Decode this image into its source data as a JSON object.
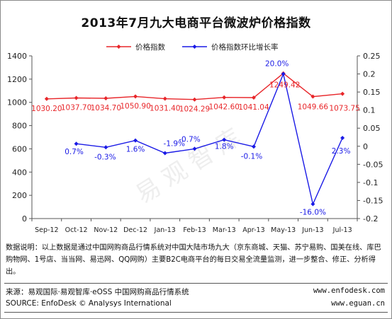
{
  "chart_data": {
    "type": "line",
    "title": "2013年7月九大电商平台微波炉价格指数",
    "categories": [
      "Sep-12",
      "Oct-12",
      "Nov-12",
      "Dec-12",
      "Jan-13",
      "Feb-13",
      "Mar-13",
      "Apr-13",
      "May-13",
      "Jun-13",
      "Jul-13"
    ],
    "left_axis": {
      "ylim": [
        0,
        1400
      ],
      "ticks": [
        "0",
        "200",
        "400",
        "600",
        "800",
        "1000",
        "1200",
        "1400"
      ]
    },
    "right_axis": {
      "ylim": [
        -0.2,
        0.25
      ],
      "ticks": [
        "-0.2",
        "-0.15",
        "-0.1",
        "-0.05",
        "0",
        "0.05",
        "0.1",
        "0.15",
        "0.2",
        "0.25"
      ]
    },
    "legend_position": "top",
    "grid": false,
    "series": [
      {
        "name": "价格指数",
        "axis": "left",
        "color": "#e8262a",
        "values": [
          1030.2,
          1037.7,
          1034.7,
          1050.9,
          1031.4,
          1024.29,
          1042.6,
          1041.04,
          1249.42,
          1049.66,
          1073.75
        ],
        "labels": [
          "1030.20",
          "1037.70",
          "1034.70",
          "1050.90",
          "1031.40",
          "1024.29",
          "1042.60",
          "1041.04",
          "1249.42",
          "1049.66",
          "1073.75"
        ]
      },
      {
        "name": "价格指数环比增长率",
        "axis": "right",
        "color": "#1a1ae6",
        "values": [
          null,
          0.007,
          -0.003,
          0.016,
          -0.019,
          -0.007,
          0.018,
          -0.001,
          0.2,
          -0.16,
          0.023
        ],
        "labels": [
          "",
          "0.7%",
          "-0.3%",
          "1.6%",
          "-1.9%",
          "-0.7%",
          "1.8%",
          "-0.1%",
          "20.0%",
          "-16.0%",
          "2.3%"
        ]
      }
    ]
  },
  "footer": {
    "note": "数据说明：以上数据是通过中国网购商品行情系统对中国大陆市场九大（京东商城、天猫、苏宁易购、国美在线、库巴购物网、1号店、当当网、易迅网、QQ网购）主要B2C电商平台的每日交易全流量监测，进一步整合、修正、分析得出。",
    "source_cn": "来源：易观国际·易观智库·eOSS 中国网购商品行情系统",
    "source_en": "SOURCE: EnfoDesk © Analysys International",
    "site1": "www.enfodesk.com",
    "site2": "www.eguan.cn"
  },
  "watermark": "易观智库"
}
